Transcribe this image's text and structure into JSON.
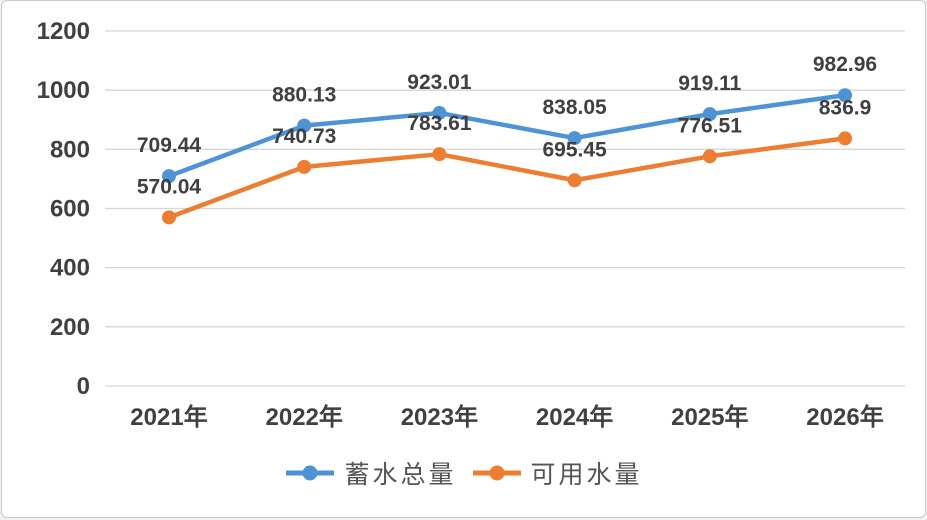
{
  "chart_data": {
    "type": "line",
    "categories": [
      "2021年",
      "2022年",
      "2023年",
      "2024年",
      "2025年",
      "2026年"
    ],
    "series": [
      {
        "name": "蓄水总量",
        "color": "#4E93D6",
        "values": [
          709.44,
          880.13,
          923.01,
          838.05,
          919.11,
          982.96
        ]
      },
      {
        "name": "可用水量",
        "color": "#ED7D31",
        "values": [
          570.04,
          740.73,
          783.61,
          695.45,
          776.51,
          836.9
        ]
      }
    ],
    "title": "",
    "xlabel": "",
    "ylabel": "",
    "ylim": [
      0,
      1200
    ],
    "yticks": [
      0,
      200,
      400,
      600,
      800,
      1000,
      1200
    ],
    "grid": true,
    "legend_position": "bottom",
    "data_labels": true,
    "colors": {
      "gridline": "#d6d6d6",
      "text": "#404040",
      "background": "#ffffff",
      "border": "#c9c9c9"
    }
  }
}
